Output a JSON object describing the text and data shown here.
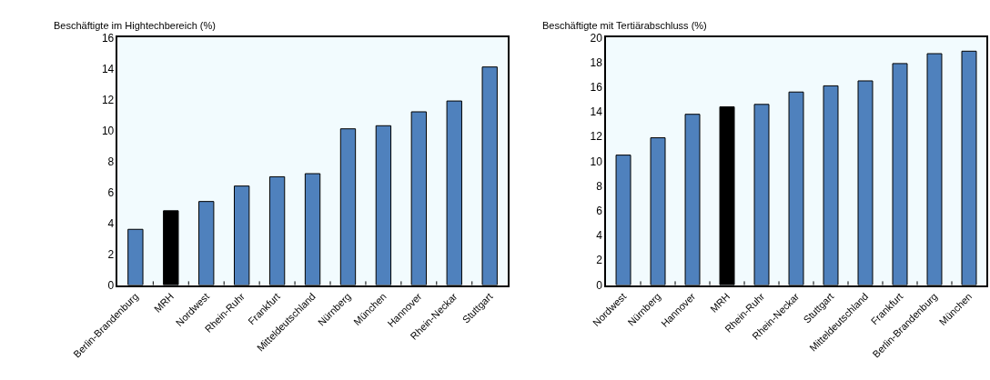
{
  "chart_data": [
    {
      "type": "bar",
      "title": "Beschäftigte im Hightechbereich (%)",
      "categories": [
        "Berlin-Brandenburg",
        "MRH",
        "Nordwest",
        "Rhein-Ruhr",
        "Frankfurt",
        "Mitteldeutschland",
        "Nürnberg",
        "München",
        "Hannover",
        "Rhein-Neckar",
        "Stuttgart"
      ],
      "values": [
        3.6,
        4.8,
        5.4,
        6.4,
        7.0,
        7.2,
        10.1,
        10.3,
        11.2,
        11.9,
        14.1
      ],
      "colors": [
        "#4f81bd",
        "#000000",
        "#4f81bd",
        "#4f81bd",
        "#4f81bd",
        "#4f81bd",
        "#4f81bd",
        "#4f81bd",
        "#4f81bd",
        "#4f81bd",
        "#4f81bd"
      ],
      "ylim": [
        0,
        16
      ],
      "yticks": [
        0,
        2,
        4,
        6,
        8,
        10,
        12,
        14,
        16
      ]
    },
    {
      "type": "bar",
      "title": "Beschäftigte mit Tertiärabschluss (%)",
      "categories": [
        "Nordwest",
        "Nürnberg",
        "Hannover",
        "MRH",
        "Rhein-Ruhr",
        "Rhein-Neckar",
        "Stuttgart",
        "Mitteldeutschland",
        "Frankfurt",
        "Berlin-Brandenburg",
        "München"
      ],
      "values": [
        10.5,
        11.9,
        13.8,
        14.4,
        14.6,
        15.6,
        16.1,
        16.5,
        17.9,
        18.7,
        18.9
      ],
      "colors": [
        "#4f81bd",
        "#4f81bd",
        "#4f81bd",
        "#000000",
        "#4f81bd",
        "#4f81bd",
        "#4f81bd",
        "#4f81bd",
        "#4f81bd",
        "#4f81bd",
        "#4f81bd"
      ],
      "ylim": [
        0,
        20
      ],
      "yticks": [
        0,
        2,
        4,
        6,
        8,
        10,
        12,
        14,
        16,
        18,
        20
      ]
    }
  ]
}
